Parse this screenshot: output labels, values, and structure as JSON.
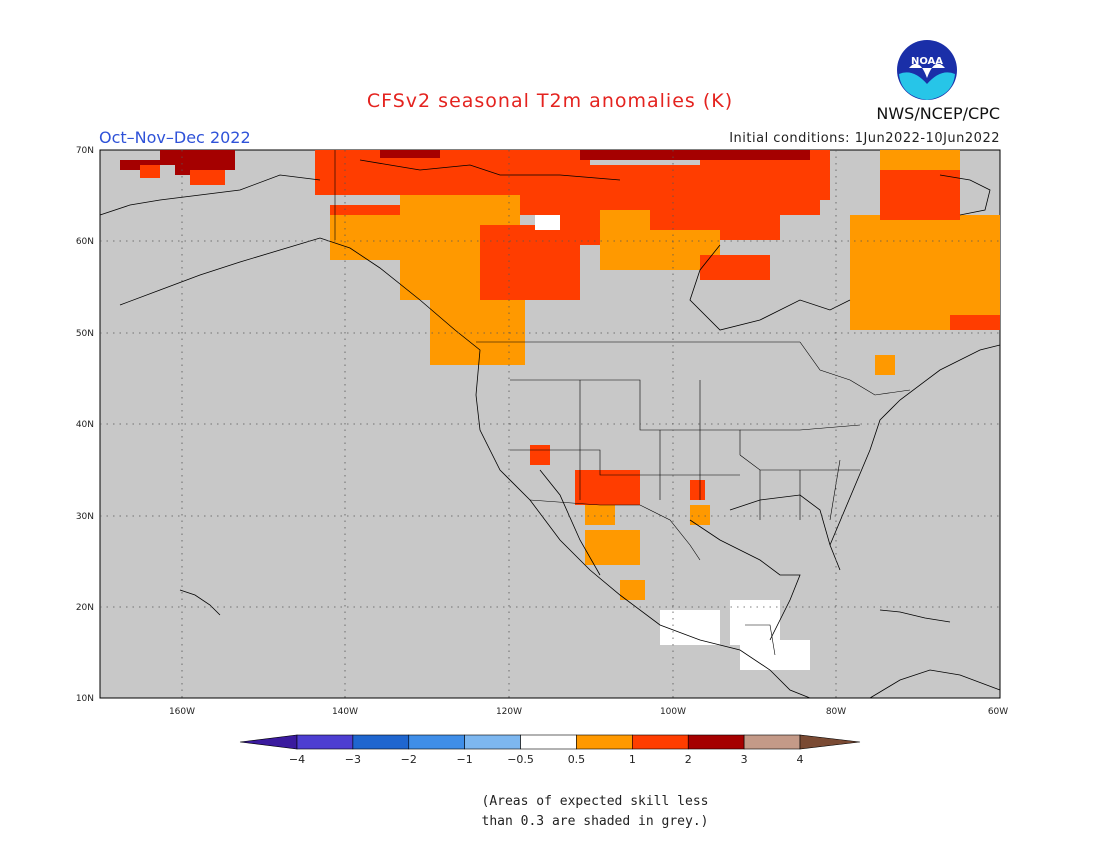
{
  "title": "CFSv2 seasonal T2m anomalies (K)",
  "period": "Oct–Nov–Dec 2022",
  "initial_conditions": "Initial conditions: 1Jun2022-10Jun2022",
  "agency": "NWS/NCEP/CPC",
  "logo_text": "NOAA",
  "footnote_line1": "(Areas of expected skill less",
  "footnote_line2": "than 0.3 are shaded in grey.)",
  "colors": {
    "background_grey": "#c8c8c8",
    "band_0_5_1": "#ff9900",
    "band_1_2": "#ff3d00",
    "band_2_3": "#a50000",
    "near_zero": "#ffffff"
  },
  "map": {
    "lon_range": [
      -170,
      -60
    ],
    "lat_range": [
      10,
      70
    ],
    "lat_labels": [
      "70N",
      "60N",
      "50N",
      "40N",
      "30N",
      "20N",
      "10N"
    ],
    "lon_labels": [
      "160W",
      "140W",
      "120W",
      "100W",
      "80W",
      "60W"
    ]
  },
  "legend": {
    "boundaries": [
      "−4",
      "−3",
      "−2",
      "−1",
      "−0.5",
      "0.5",
      "1",
      "2",
      "3",
      "4"
    ],
    "colors": [
      "#3a1a9e",
      "#4d3ed1",
      "#1f66cf",
      "#3f8ee8",
      "#7db7f0",
      "#ffffff",
      "#ff9900",
      "#ff3d00",
      "#a50000",
      "#c49a88",
      "#7a4a33"
    ]
  },
  "regions": [
    {
      "name": "north-alaska-dark",
      "band": "band_2_3",
      "cells": [
        [
          160,
          150,
          235,
          165
        ],
        [
          175,
          165,
          200,
          175
        ],
        [
          200,
          160,
          235,
          170
        ],
        [
          120,
          160,
          160,
          170
        ]
      ]
    },
    {
      "name": "alaska-orange",
      "band": "band_1_2",
      "cells": [
        [
          140,
          165,
          160,
          178
        ],
        [
          190,
          170,
          225,
          185
        ]
      ]
    },
    {
      "name": "canada-red-north",
      "band": "band_1_2",
      "cells": [
        [
          315,
          150,
          590,
          195
        ],
        [
          400,
          160,
          540,
          215
        ],
        [
          540,
          165,
          720,
          245
        ],
        [
          655,
          185,
          780,
          240
        ],
        [
          330,
          205,
          400,
          225
        ],
        [
          700,
          150,
          830,
          200
        ],
        [
          780,
          185,
          820,
          215
        ]
      ]
    },
    {
      "name": "canada-orange",
      "band": "band_0_5_1",
      "cells": [
        [
          330,
          215,
          480,
          260
        ],
        [
          400,
          195,
          520,
          300
        ],
        [
          460,
          240,
          525,
          345
        ],
        [
          600,
          210,
          650,
          270
        ],
        [
          620,
          230,
          720,
          270
        ]
      ]
    },
    {
      "name": "canada-red-central",
      "band": "band_1_2",
      "cells": [
        [
          480,
          225,
          580,
          300
        ],
        [
          530,
          250,
          560,
          290
        ]
      ]
    },
    {
      "name": "hudson-red",
      "band": "band_1_2",
      "cells": [
        [
          700,
          255,
          770,
          280
        ]
      ]
    },
    {
      "name": "quebec-orange",
      "band": "band_0_5_1",
      "cells": [
        [
          850,
          215,
          1000,
          330
        ],
        [
          880,
          150,
          960,
          220
        ]
      ]
    },
    {
      "name": "quebec-red",
      "band": "band_1_2",
      "cells": [
        [
          880,
          170,
          960,
          220
        ],
        [
          950,
          315,
          1000,
          330
        ]
      ]
    },
    {
      "name": "arctic-dark",
      "band": "band_2_3",
      "cells": [
        [
          580,
          150,
          810,
          160
        ],
        [
          380,
          150,
          440,
          158
        ]
      ]
    },
    {
      "name": "bc-coast-orange",
      "band": "band_0_5_1",
      "cells": [
        [
          430,
          300,
          525,
          365
        ]
      ]
    },
    {
      "name": "southwest-red",
      "band": "band_1_2",
      "cells": [
        [
          530,
          445,
          550,
          465
        ],
        [
          575,
          470,
          640,
          505
        ],
        [
          690,
          480,
          705,
          500
        ]
      ]
    },
    {
      "name": "mexico-orange",
      "band": "band_0_5_1",
      "cells": [
        [
          585,
          505,
          615,
          525
        ],
        [
          585,
          530,
          640,
          565
        ],
        [
          620,
          580,
          645,
          600
        ],
        [
          690,
          505,
          710,
          525
        ],
        [
          875,
          355,
          895,
          375
        ]
      ]
    },
    {
      "name": "central-america-white",
      "band": "near_zero",
      "cells": [
        [
          660,
          610,
          720,
          645
        ],
        [
          730,
          600,
          780,
          645
        ],
        [
          740,
          640,
          810,
          670
        ],
        [
          535,
          215,
          560,
          230
        ]
      ]
    }
  ]
}
